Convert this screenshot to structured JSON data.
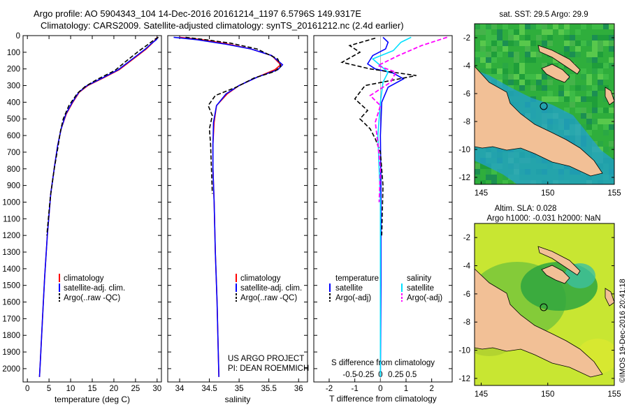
{
  "header": {
    "line1": "Argo profile: AO 5904343_104 14-Dec-2016 20161214_1197 6.5796S 149.9317E",
    "line2": "Climatology: CARS2009. Satellite-adjusted climatology: synTS_20161212.nc (2.4d earlier)"
  },
  "colors": {
    "clim": "#ff0000",
    "sat": "#0000ff",
    "argo": "#000000",
    "cyan": "#00e0ff",
    "magenta": "#ff00ff",
    "land": "#f2c096"
  },
  "depth_ticks": [
    0,
    100,
    200,
    300,
    400,
    500,
    600,
    700,
    800,
    900,
    1000,
    1100,
    1200,
    1300,
    1400,
    1500,
    1600,
    1700,
    1800,
    1900,
    2000
  ],
  "temperature_panel": {
    "xlabel": "temperature (deg C)",
    "ticks": [
      0,
      5,
      10,
      15,
      20,
      25,
      30
    ],
    "xlim": [
      -1,
      31
    ],
    "legend": [
      "climatology",
      "satellite-adj. clim.",
      "Argo(..raw -QC)"
    ],
    "series": {
      "climatology": [
        [
          30,
          10
        ],
        [
          29.6,
          25
        ],
        [
          28.9,
          45
        ],
        [
          27.5,
          80
        ],
        [
          24.5,
          140
        ],
        [
          21.2,
          205
        ],
        [
          17.5,
          255
        ],
        [
          14,
          300
        ],
        [
          12,
          340
        ],
        [
          10.5,
          400
        ],
        [
          9,
          470
        ],
        [
          7.8,
          560
        ],
        [
          7,
          660
        ],
        [
          6.3,
          780
        ],
        [
          5.4,
          950
        ],
        [
          4.6,
          1200
        ],
        [
          4,
          1450
        ],
        [
          3.5,
          1700
        ],
        [
          3.0,
          1950
        ],
        [
          2.8,
          2050
        ]
      ],
      "satellite": [
        [
          30.2,
          10
        ],
        [
          29.8,
          25
        ],
        [
          28.8,
          45
        ],
        [
          27.3,
          80
        ],
        [
          24.3,
          140
        ],
        [
          21.0,
          205
        ],
        [
          17.3,
          255
        ],
        [
          13.8,
          300
        ],
        [
          11.9,
          340
        ],
        [
          10.4,
          400
        ],
        [
          8.9,
          470
        ],
        [
          7.8,
          560
        ],
        [
          7.0,
          660
        ],
        [
          6.3,
          780
        ],
        [
          5.4,
          950
        ],
        [
          4.6,
          1200
        ],
        [
          4.0,
          1450
        ],
        [
          3.5,
          1700
        ],
        [
          3.0,
          1950
        ],
        [
          2.8,
          2050
        ]
      ],
      "argo": [
        [
          30.3,
          10
        ],
        [
          29.5,
          22
        ],
        [
          27.8,
          55
        ],
        [
          25.9,
          90
        ],
        [
          23,
          150
        ],
        [
          20.2,
          210
        ],
        [
          16.2,
          262
        ],
        [
          13.4,
          305
        ],
        [
          11.6,
          345
        ],
        [
          9.6,
          420
        ],
        [
          8.3,
          500
        ],
        [
          7.6,
          580
        ],
        [
          7.0,
          680
        ],
        [
          6.2,
          800
        ],
        [
          5.3,
          970
        ],
        [
          4.5,
          1200
        ]
      ]
    }
  },
  "salinity_panel": {
    "xlabel": "salinity",
    "ticks": [
      34,
      34.5,
      35,
      35.5,
      36
    ],
    "tick_labels": [
      "34",
      "34.5",
      "35",
      "35.5",
      "36"
    ],
    "xlim": [
      33.8,
      36.15
    ],
    "legend": [
      "climatology",
      "satellite-adj. clim.",
      "Argo(..raw -QC)"
    ],
    "project": "US ARGO PROJECT",
    "pi": "PI: DEAN ROEMMICH",
    "series": {
      "climatology": [
        [
          34.0,
          10
        ],
        [
          34.4,
          25
        ],
        [
          34.8,
          50
        ],
        [
          35.2,
          80
        ],
        [
          35.55,
          120
        ],
        [
          35.7,
          175
        ],
        [
          35.6,
          205
        ],
        [
          35.3,
          250
        ],
        [
          35.0,
          300
        ],
        [
          34.8,
          350
        ],
        [
          34.62,
          420
        ],
        [
          34.58,
          520
        ],
        [
          34.56,
          650
        ],
        [
          34.56,
          800
        ],
        [
          34.58,
          1000
        ],
        [
          34.6,
          1300
        ],
        [
          34.63,
          1600
        ],
        [
          34.65,
          1900
        ],
        [
          34.66,
          2050
        ]
      ],
      "satellite": [
        [
          33.9,
          10
        ],
        [
          34.3,
          25
        ],
        [
          34.75,
          50
        ],
        [
          35.2,
          80
        ],
        [
          35.55,
          120
        ],
        [
          35.73,
          175
        ],
        [
          35.65,
          205
        ],
        [
          35.3,
          250
        ],
        [
          35.0,
          300
        ],
        [
          34.78,
          350
        ],
        [
          34.62,
          420
        ],
        [
          34.57,
          520
        ],
        [
          34.56,
          650
        ],
        [
          34.56,
          800
        ],
        [
          34.58,
          1000
        ],
        [
          34.6,
          1300
        ],
        [
          34.63,
          1600
        ],
        [
          34.65,
          1900
        ],
        [
          34.66,
          2050
        ]
      ],
      "argo": [
        [
          34.1,
          10
        ],
        [
          34.45,
          25
        ],
        [
          34.85,
          45
        ],
        [
          35.3,
          80
        ],
        [
          35.65,
          140
        ],
        [
          35.7,
          185
        ],
        [
          35.6,
          215
        ],
        [
          35.25,
          255
        ],
        [
          34.95,
          310
        ],
        [
          34.6,
          360
        ],
        [
          34.48,
          420
        ],
        [
          34.55,
          480
        ],
        [
          34.5,
          560
        ],
        [
          34.52,
          650
        ],
        [
          34.53,
          750
        ],
        [
          34.54,
          850
        ],
        [
          34.55,
          950
        ]
      ]
    }
  },
  "diff_panel": {
    "top_label": "S difference from climatology",
    "s_ticks": [
      -0.5,
      -0.25,
      0,
      0.25,
      0.5
    ],
    "s_tick_labels": [
      "-0.5",
      "-0.25",
      "0",
      "0.25",
      "0.5"
    ],
    "xlabel": "T difference from climatology",
    "t_ticks": [
      -2,
      -1,
      0,
      1,
      2
    ],
    "t_tick_labels": [
      "-2",
      "-1",
      "0",
      "1",
      "2"
    ],
    "xlim": [
      -2.6,
      2.8
    ],
    "legend": {
      "temperature": "temperature",
      "salinity": "salinity",
      "satellite": "satellite",
      "argo_adj": "Argo(-adj)"
    },
    "series": {
      "t_satellite": [
        [
          0.1,
          10
        ],
        [
          0.3,
          40
        ],
        [
          0.2,
          80
        ],
        [
          -0.3,
          120
        ],
        [
          -0.5,
          170
        ],
        [
          -0.2,
          200
        ],
        [
          0.5,
          225
        ],
        [
          0.9,
          260
        ],
        [
          0.3,
          310
        ],
        [
          0.05,
          400
        ],
        [
          0.0,
          600
        ],
        [
          0.02,
          900
        ],
        [
          0.02,
          1500
        ],
        [
          0.0,
          2050
        ]
      ],
      "t_argo": [
        [
          -0.2,
          15
        ],
        [
          -1.2,
          60
        ],
        [
          -0.8,
          100
        ],
        [
          -1.5,
          160
        ],
        [
          -0.4,
          200
        ],
        [
          0.5,
          220
        ],
        [
          1.4,
          240
        ],
        [
          -0.6,
          300
        ],
        [
          -1.0,
          380
        ],
        [
          -0.5,
          450
        ],
        [
          -0.8,
          500
        ],
        [
          -0.4,
          560
        ],
        [
          -0.2,
          620
        ],
        [
          0.0,
          700
        ],
        [
          0.1,
          900
        ],
        [
          0.05,
          1200
        ]
      ],
      "s_satellite": [
        [
          1.2,
          10
        ],
        [
          0.8,
          40
        ],
        [
          0.5,
          90
        ],
        [
          -0.3,
          140
        ],
        [
          0.0,
          180
        ],
        [
          0.3,
          220
        ],
        [
          0.1,
          280
        ],
        [
          0.0,
          400
        ],
        [
          -0.1,
          600
        ],
        [
          0.0,
          1000
        ],
        [
          0.0,
          2050
        ]
      ],
      "s_argo": [
        [
          2.6,
          10
        ],
        [
          2.2,
          30
        ],
        [
          1.6,
          60
        ],
        [
          0.7,
          120
        ],
        [
          -0.1,
          180
        ],
        [
          0.6,
          220
        ],
        [
          0.4,
          280
        ],
        [
          -0.4,
          360
        ],
        [
          0.0,
          420
        ],
        [
          -0.2,
          520
        ],
        [
          -0.1,
          650
        ],
        [
          0.0,
          800
        ],
        [
          -0.05,
          1000
        ]
      ]
    }
  },
  "sst_map": {
    "title": "sat. SST: 29.5  Argo: 29.9",
    "y_ticks": [
      -2,
      -4,
      -6,
      -8,
      -10,
      -12
    ],
    "y_tick_labels": [
      "-2",
      "-4",
      "-6",
      "-8",
      "-10",
      "-12"
    ],
    "x_ticks": [
      145,
      150,
      155
    ],
    "x_tick_labels": [
      "145",
      "150",
      "155"
    ]
  },
  "sla_map": {
    "title1": "Altim. SLA: 0.028",
    "title2": "Argo h1000: -0.031  h2000: NaN",
    "y_ticks": [
      -2,
      -4,
      -6,
      -8,
      -10,
      -12
    ],
    "y_tick_labels": [
      "-2",
      "-4",
      "-6",
      "-8",
      "-10",
      "-12"
    ],
    "x_ticks": [
      145,
      150,
      155
    ],
    "x_tick_labels": [
      "145",
      "150",
      "155"
    ]
  },
  "credit": "©IMOS 19-Dec-2016 20:41:18"
}
